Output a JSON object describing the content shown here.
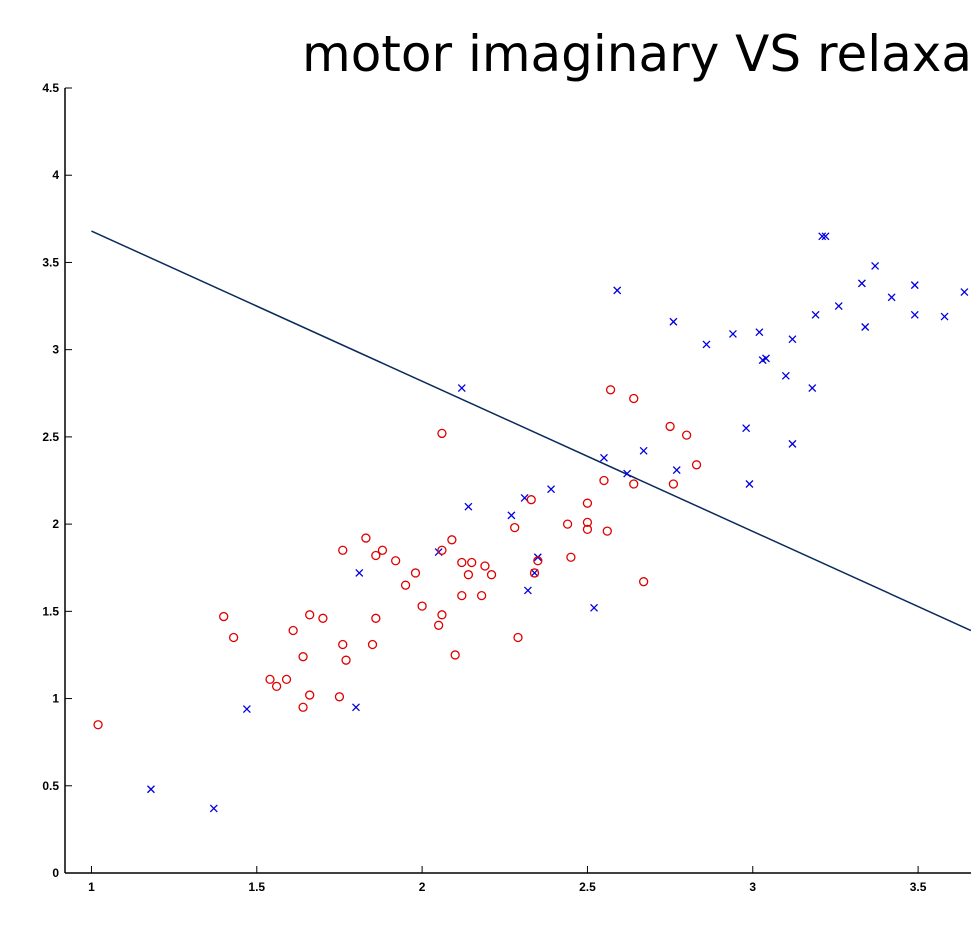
{
  "chart_data": {
    "type": "scatter",
    "title": "motor imaginary VS relaxatio",
    "xlabel": "",
    "ylabel": "",
    "xlim": [
      0.92,
      3.66
    ],
    "ylim": [
      0,
      4.5
    ],
    "xticks": [
      "1",
      "1.5",
      "2",
      "2.5",
      "3",
      "3.5"
    ],
    "yticks": [
      "0",
      "0.5",
      "1",
      "1.5",
      "2",
      "2.5",
      "3",
      "3.5",
      "4",
      "4.5"
    ],
    "grid": false,
    "colors": {
      "circles": "#e00000",
      "crosses": "#0000e0",
      "line": "#0a2a5a"
    },
    "decision_boundary": {
      "x": [
        1.0,
        3.66
      ],
      "y": [
        3.68,
        1.39
      ]
    },
    "series": [
      {
        "marker": "x",
        "points": [
          [
            1.18,
            0.48
          ],
          [
            1.37,
            0.37
          ],
          [
            1.47,
            0.94
          ],
          [
            1.8,
            0.95
          ],
          [
            1.81,
            1.72
          ],
          [
            2.05,
            1.84
          ],
          [
            2.12,
            2.78
          ],
          [
            2.14,
            2.1
          ],
          [
            2.27,
            2.05
          ],
          [
            2.31,
            2.15
          ],
          [
            2.32,
            1.62
          ],
          [
            2.34,
            1.72
          ],
          [
            2.35,
            1.81
          ],
          [
            2.39,
            2.2
          ],
          [
            2.52,
            1.52
          ],
          [
            2.55,
            2.38
          ],
          [
            2.59,
            3.34
          ],
          [
            2.62,
            2.29
          ],
          [
            2.67,
            2.42
          ],
          [
            2.76,
            3.16
          ],
          [
            2.77,
            2.31
          ],
          [
            2.86,
            3.03
          ],
          [
            2.94,
            3.09
          ],
          [
            2.98,
            2.55
          ],
          [
            2.99,
            2.23
          ],
          [
            3.02,
            3.1
          ],
          [
            3.03,
            2.94
          ],
          [
            3.04,
            2.95
          ],
          [
            3.1,
            2.85
          ],
          [
            3.12,
            3.06
          ],
          [
            3.12,
            2.46
          ],
          [
            3.18,
            2.78
          ],
          [
            3.19,
            3.2
          ],
          [
            3.21,
            3.65
          ],
          [
            3.22,
            3.65
          ],
          [
            3.26,
            3.25
          ],
          [
            3.33,
            3.38
          ],
          [
            3.34,
            3.13
          ],
          [
            3.37,
            3.48
          ],
          [
            3.42,
            3.3
          ],
          [
            3.49,
            3.37
          ],
          [
            3.49,
            3.2
          ],
          [
            3.58,
            3.19
          ],
          [
            3.64,
            3.33
          ]
        ]
      },
      {
        "marker": "o",
        "points": [
          [
            1.02,
            0.85
          ],
          [
            1.4,
            1.47
          ],
          [
            1.43,
            1.35
          ],
          [
            1.54,
            1.11
          ],
          [
            1.56,
            1.07
          ],
          [
            1.59,
            1.11
          ],
          [
            1.61,
            1.39
          ],
          [
            1.64,
            0.95
          ],
          [
            1.64,
            1.24
          ],
          [
            1.66,
            1.48
          ],
          [
            1.66,
            1.02
          ],
          [
            1.7,
            1.46
          ],
          [
            1.75,
            1.01
          ],
          [
            1.76,
            1.85
          ],
          [
            1.76,
            1.31
          ],
          [
            1.77,
            1.22
          ],
          [
            1.83,
            1.92
          ],
          [
            1.85,
            1.31
          ],
          [
            1.86,
            1.46
          ],
          [
            1.86,
            1.82
          ],
          [
            1.88,
            1.85
          ],
          [
            1.92,
            1.79
          ],
          [
            1.95,
            1.65
          ],
          [
            1.98,
            1.72
          ],
          [
            2.0,
            1.53
          ],
          [
            2.05,
            1.42
          ],
          [
            2.06,
            1.48
          ],
          [
            2.06,
            1.85
          ],
          [
            2.06,
            2.52
          ],
          [
            2.09,
            1.91
          ],
          [
            2.1,
            1.25
          ],
          [
            2.12,
            1.78
          ],
          [
            2.12,
            1.59
          ],
          [
            2.14,
            1.71
          ],
          [
            2.15,
            1.78
          ],
          [
            2.18,
            1.59
          ],
          [
            2.19,
            1.76
          ],
          [
            2.21,
            1.71
          ],
          [
            2.28,
            1.98
          ],
          [
            2.29,
            1.35
          ],
          [
            2.33,
            2.14
          ],
          [
            2.34,
            1.72
          ],
          [
            2.35,
            1.79
          ],
          [
            2.44,
            2.0
          ],
          [
            2.45,
            1.81
          ],
          [
            2.5,
            2.12
          ],
          [
            2.5,
            2.01
          ],
          [
            2.5,
            1.97
          ],
          [
            2.55,
            2.25
          ],
          [
            2.56,
            1.96
          ],
          [
            2.57,
            2.77
          ],
          [
            2.64,
            2.72
          ],
          [
            2.64,
            2.23
          ],
          [
            2.67,
            1.67
          ],
          [
            2.75,
            2.56
          ],
          [
            2.76,
            2.23
          ],
          [
            2.8,
            2.51
          ],
          [
            2.83,
            2.34
          ]
        ]
      }
    ]
  }
}
